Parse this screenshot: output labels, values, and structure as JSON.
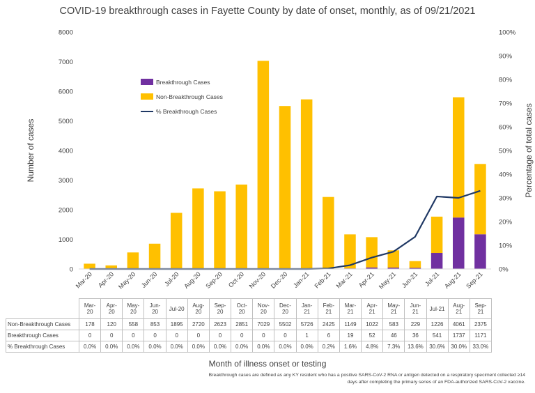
{
  "chart_data": {
    "type": "bar",
    "title": "COVID-19 breakthrough cases in Fayette County by date of onset, monthly, as of 09/21/2021",
    "xlabel": "Month of illness onset or testing",
    "ylabel": "Number of cases",
    "y2label": "Percentage of total cases",
    "ylim": [
      0,
      8000
    ],
    "y2lim": [
      0,
      100
    ],
    "yticks": [
      "0",
      "1000",
      "2000",
      "3000",
      "4000",
      "5000",
      "6000",
      "7000",
      "8000"
    ],
    "y2ticks": [
      "0%",
      "10%",
      "20%",
      "30%",
      "40%",
      "50%",
      "60%",
      "70%",
      "80%",
      "90%",
      "100%"
    ],
    "grid": false,
    "legend_position": "top-left",
    "stacked": true,
    "categories": [
      "Mar-20",
      "Apr-20",
      "May-20",
      "Jun-20",
      "Jul-20",
      "Aug-20",
      "Sep-20",
      "Oct-20",
      "Nov-20",
      "Dec-20",
      "Jan-21",
      "Feb-21",
      "Mar-21",
      "Apr-21",
      "May-21",
      "Jun-21",
      "Jul-21",
      "Aug-21",
      "Sep-21"
    ],
    "table_headers": [
      "Mar-\n20",
      "Apr-\n20",
      "May-\n20",
      "Jun-\n20",
      "Jul-20",
      "Aug-\n20",
      "Sep-\n20",
      "Oct-\n20",
      "Nov-\n20",
      "Dec-\n20",
      "Jan-\n21",
      "Feb-\n21",
      "Mar-\n21",
      "Apr-\n21",
      "May-\n21",
      "Jun-\n21",
      "Jul-21",
      "Aug-\n21",
      "Sep-\n21"
    ],
    "series": [
      {
        "name": "Breakthrough Cases",
        "kind": "bar",
        "color": "#7030A0",
        "values": [
          0,
          0,
          0,
          0,
          0,
          0,
          0,
          0,
          0,
          0,
          1,
          6,
          19,
          52,
          46,
          36,
          541,
          1737,
          1171
        ]
      },
      {
        "name": "Non-Breakthrough Cases",
        "kind": "bar",
        "color": "#FFC000",
        "values": [
          178,
          120,
          558,
          853,
          1895,
          2720,
          2623,
          2851,
          7029,
          5502,
          5726,
          2425,
          1149,
          1022,
          583,
          229,
          1226,
          4061,
          2375
        ]
      },
      {
        "name": "% Breakthrough Cases",
        "kind": "line",
        "axis": "secondary",
        "color": "#1F3864",
        "values": [
          0.0,
          0.0,
          0.0,
          0.0,
          0.0,
          0.0,
          0.0,
          0.0,
          0.0,
          0.0,
          0.0,
          0.2,
          1.6,
          4.8,
          7.3,
          13.6,
          30.6,
          30.0,
          33.0
        ],
        "labels": [
          "0.0%",
          "0.0%",
          "0.0%",
          "0.0%",
          "0.0%",
          "0.0%",
          "0.0%",
          "0.0%",
          "0.0%",
          "0.0%",
          "0.0%",
          "0.2%",
          "1.6%",
          "4.8%",
          "7.3%",
          "13.6%",
          "30.6%",
          "30.0%",
          "33.0%"
        ]
      }
    ],
    "table_rows": [
      {
        "label": "Non-Breakthrough Cases",
        "values": [
          "178",
          "120",
          "558",
          "853",
          "1895",
          "2720",
          "2623",
          "2851",
          "7029",
          "5502",
          "5726",
          "2425",
          "1149",
          "1022",
          "583",
          "229",
          "1226",
          "4061",
          "2375"
        ]
      },
      {
        "label": "Breakthrough Cases",
        "values": [
          "0",
          "0",
          "0",
          "0",
          "0",
          "0",
          "0",
          "0",
          "0",
          "0",
          "1",
          "6",
          "19",
          "52",
          "46",
          "36",
          "541",
          "1737",
          "1171"
        ]
      },
      {
        "label": "% Breakthrough Cases",
        "values": [
          "0.0%",
          "0.0%",
          "0.0%",
          "0.0%",
          "0.0%",
          "0.0%",
          "0.0%",
          "0.0%",
          "0.0%",
          "0.0%",
          "0.0%",
          "0.2%",
          "1.6%",
          "4.8%",
          "7.3%",
          "13.6%",
          "30.6%",
          "30.0%",
          "33.0%"
        ]
      }
    ]
  },
  "footnote": "Breakthrough cases are defined as any KY resident who has a positive SARS-CoV-2 RNA or antigen detected on a respiratory speciment collected ≥14 days after completing the primary series of an FDA-authorized SARS-CoV-2 vaccine."
}
